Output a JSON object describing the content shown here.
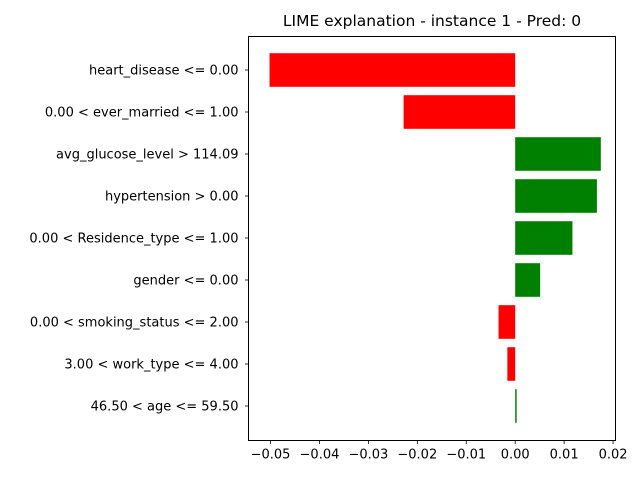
{
  "chart_data": {
    "type": "bar",
    "orientation": "horizontal",
    "title": "LIME explanation - instance 1 - Pred: 0",
    "xlabel": "",
    "ylabel": "",
    "xlim": [
      -0.0545,
      0.0205
    ],
    "xticks": [
      -0.05,
      -0.04,
      -0.03,
      -0.02,
      -0.01,
      0.0,
      0.01,
      0.02
    ],
    "xtick_labels": [
      "−0.05",
      "−0.04",
      "−0.03",
      "−0.02",
      "−0.01",
      "0.00",
      "0.01",
      "0.02"
    ],
    "grid": false,
    "legend": "none",
    "colors": {
      "positive": "#008000",
      "negative": "#ff0000"
    },
    "categories": [
      "heart_disease <= 0.00",
      "0.00 < ever_married <= 1.00",
      "avg_glucose_level > 114.09",
      "hypertension > 0.00",
      "0.00 < Residence_type <= 1.00",
      "gender <= 0.00",
      "0.00 < smoking_status <= 2.00",
      "3.00 < work_type <= 4.00",
      "46.50 < age <= 59.50"
    ],
    "values": [
      -0.0502,
      -0.0228,
      0.0175,
      0.0167,
      0.0117,
      0.0051,
      -0.0034,
      -0.0016,
      0.0003
    ]
  }
}
